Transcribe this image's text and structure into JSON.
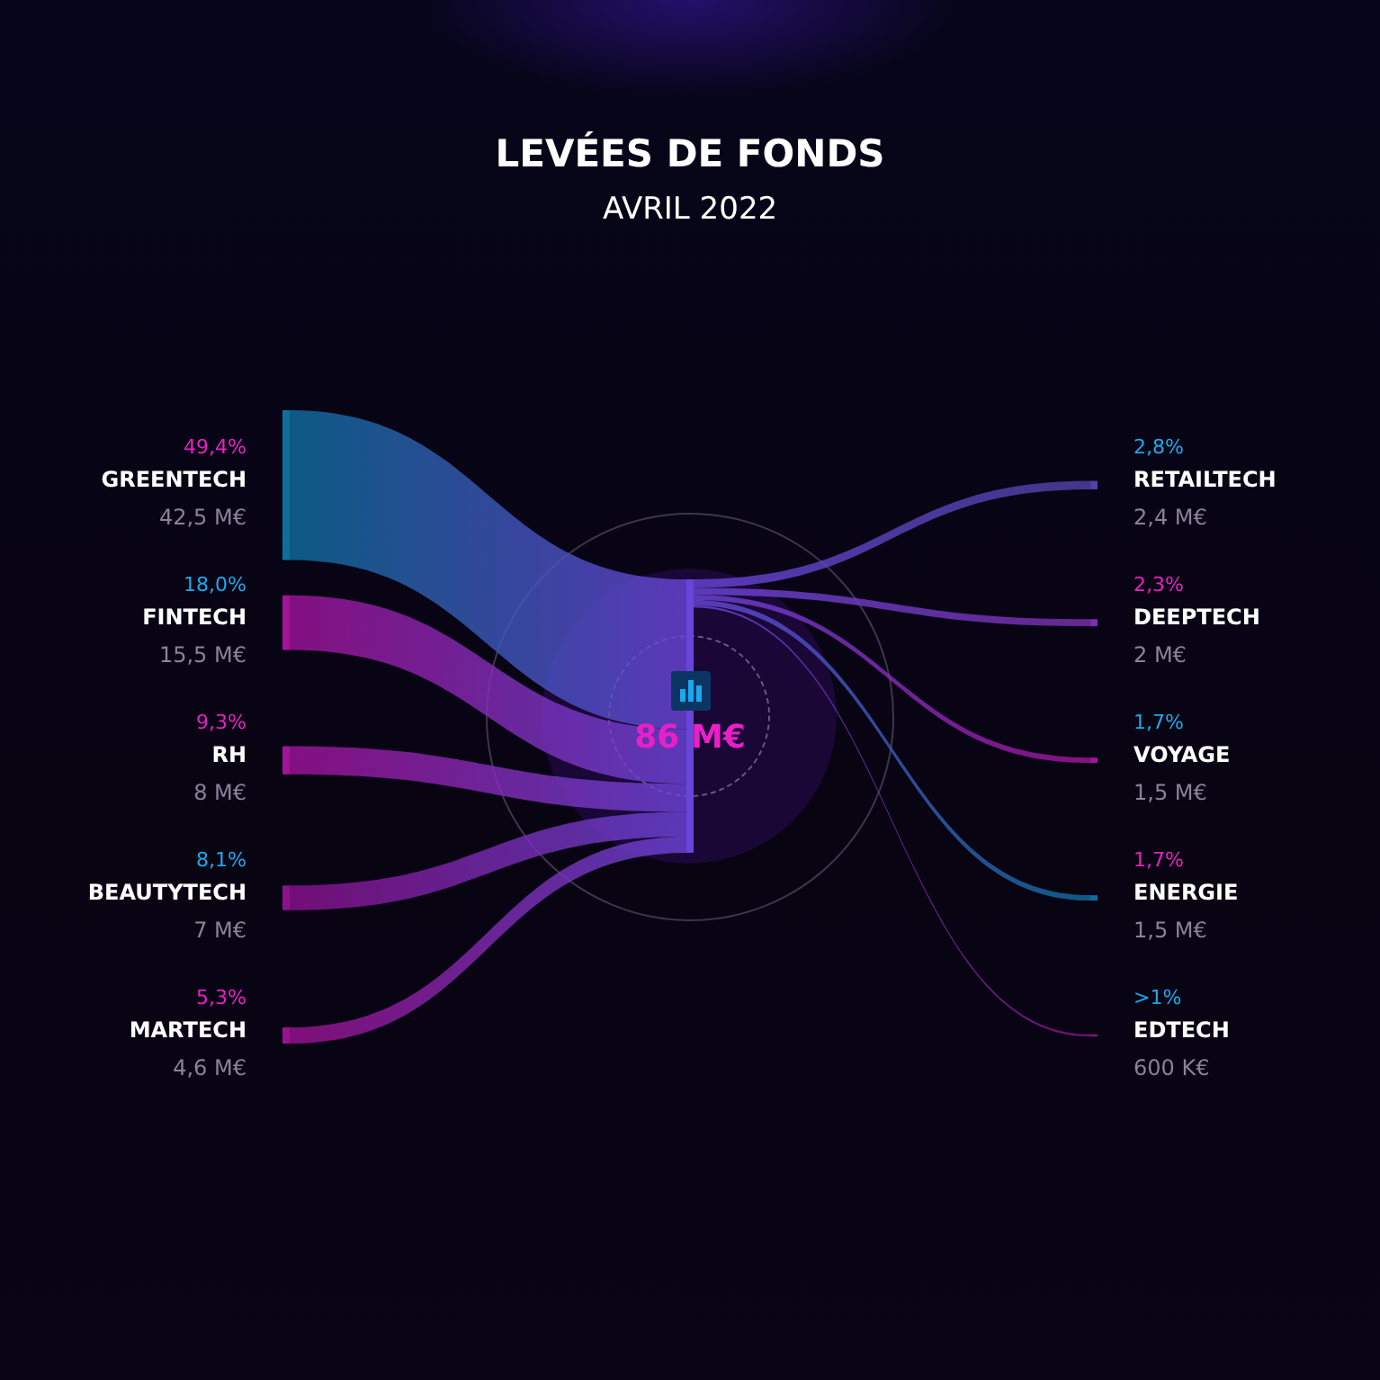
{
  "chart_data": {
    "type": "other",
    "title": "LEVÉES DE FONDS",
    "subtitle": "AVRIL 2022",
    "categories": [
      "GREENTECH",
      "FINTECH",
      "RH",
      "BEAUTYTECH",
      "MARTECH",
      "RETAILTECH",
      "DEEPTECH",
      "VOYAGE",
      "ENERGIE",
      "EDTECH"
    ],
    "series": [
      {
        "color": "#6a45d8",
        "values": [
          42.5,
          15.5,
          8,
          7,
          4.6,
          null,
          null,
          null,
          null,
          null
        ],
        "value_labels": [
          "42,5 M€",
          "15,5 M€",
          "8 M€",
          "7 M€",
          "4,6 M€",
          null,
          null,
          null,
          null,
          null
        ],
        "colors": [
          "#0e6f9f",
          "#a3139c",
          "#a3139c",
          "#8c118f",
          "#9c1192",
          null,
          null,
          null,
          null,
          null
        ]
      },
      {
        "values": [
          null,
          null,
          null,
          null,
          null,
          2.4,
          2,
          1.5,
          1.5,
          0.6
        ],
        "value_labels": [
          null,
          null,
          null,
          null,
          null,
          "2,4 M€",
          "2 M€",
          "1,5 M€",
          "1,5 M€",
          "600 K€"
        ],
        "colors": [
          null,
          null,
          null,
          null,
          null,
          "#4f43a8",
          "#7b30b0",
          "#a3139c",
          "#0e6f9f",
          "#8c118f"
        ]
      }
    ],
    "annotations": [
      "49,4%",
      "18,0%",
      "9,3%",
      "8,1%",
      "5,3%",
      "2,8%",
      "2,3%",
      "1,7%",
      "1,7%",
      ">1%"
    ],
    "totals": [
      "86 M€"
    ]
  }
}
